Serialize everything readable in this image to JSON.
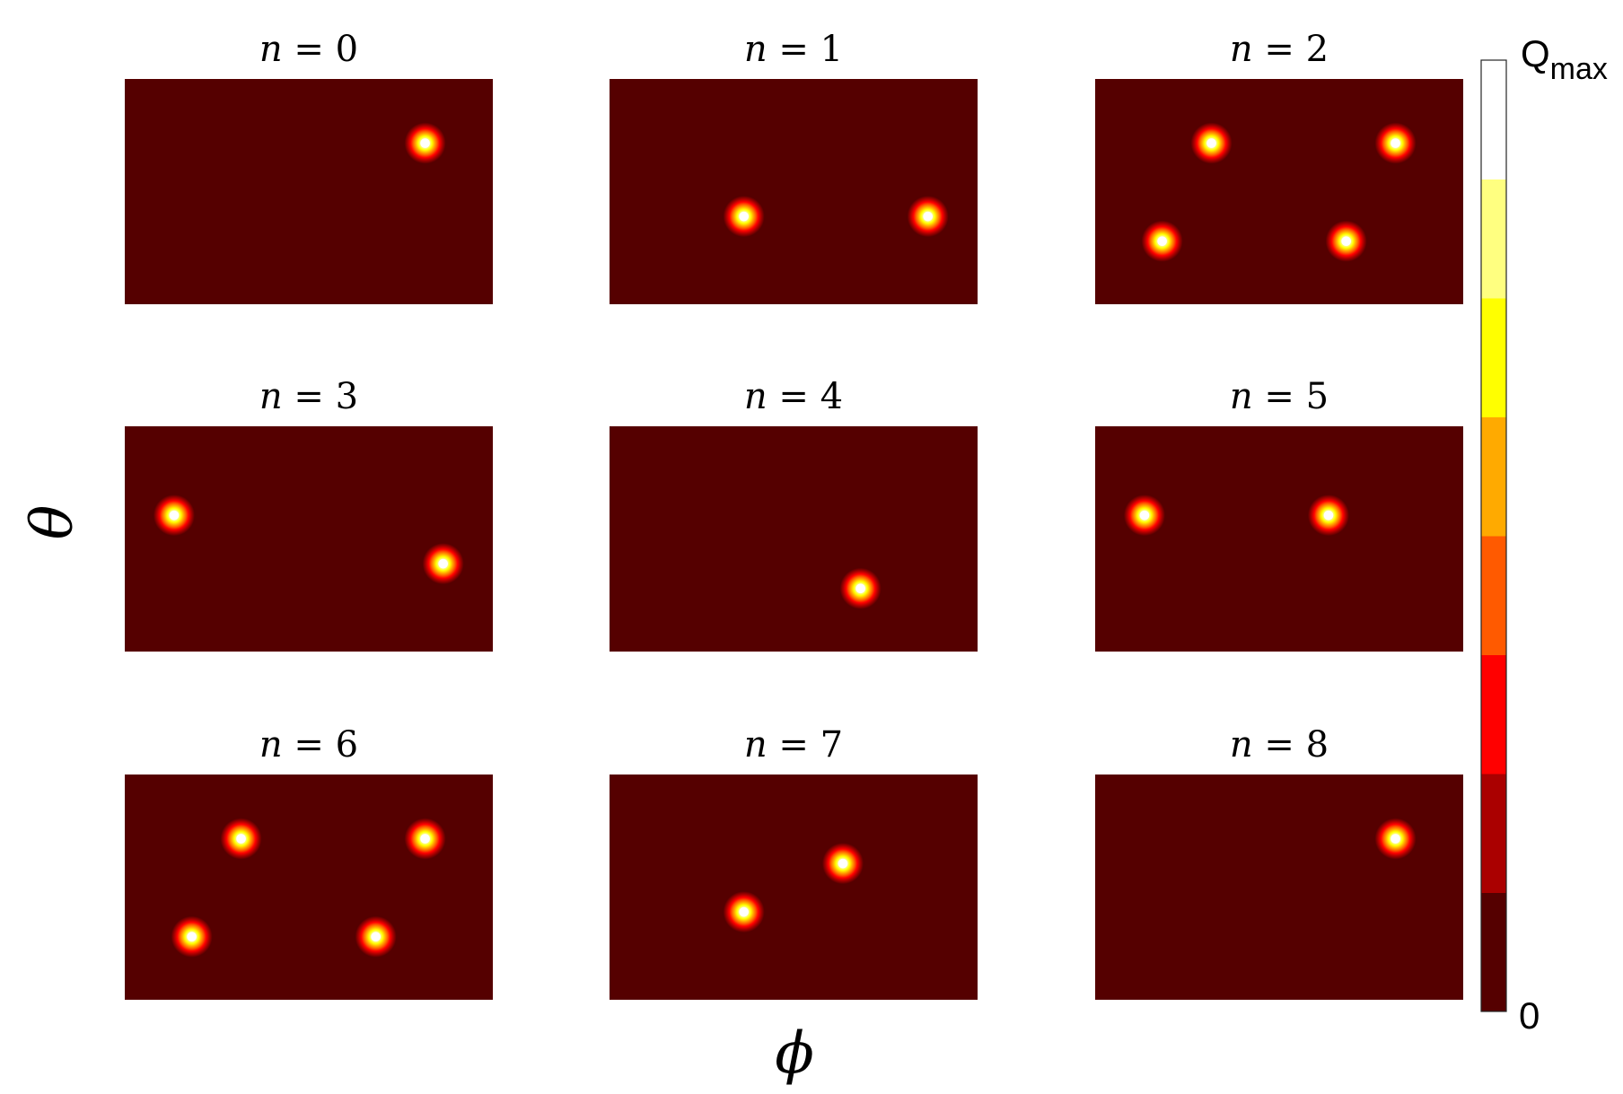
{
  "chart_data": {
    "type": "heatmap",
    "xlabel": "ϕ",
    "ylabel": "θ",
    "title_var": "n",
    "title_eq": "=",
    "background_color": "#550000",
    "colorbar": {
      "min_label": "0",
      "max_label": "Q",
      "max_label_sub": "max",
      "levels": [
        "#550000",
        "#aa0000",
        "#ff0000",
        "#ff5a00",
        "#ffaa00",
        "#ffff00",
        "#ffff80",
        "#ffffff"
      ]
    },
    "panels": [
      {
        "n": "0",
        "peaks": [
          {
            "x": 0.816,
            "y": 0.285
          }
        ]
      },
      {
        "n": "1",
        "peaks": [
          {
            "x": 0.365,
            "y": 0.61
          },
          {
            "x": 0.865,
            "y": 0.61
          }
        ]
      },
      {
        "n": "2",
        "peaks": [
          {
            "x": 0.316,
            "y": 0.285
          },
          {
            "x": 0.816,
            "y": 0.285
          },
          {
            "x": 0.182,
            "y": 0.72
          },
          {
            "x": 0.682,
            "y": 0.72
          }
        ]
      },
      {
        "n": "3",
        "peaks": [
          {
            "x": 0.134,
            "y": 0.395
          },
          {
            "x": 0.865,
            "y": 0.61
          }
        ]
      },
      {
        "n": "4",
        "peaks": [
          {
            "x": 0.682,
            "y": 0.72
          }
        ]
      },
      {
        "n": "5",
        "peaks": [
          {
            "x": 0.134,
            "y": 0.395
          },
          {
            "x": 0.634,
            "y": 0.395
          }
        ]
      },
      {
        "n": "6",
        "peaks": [
          {
            "x": 0.316,
            "y": 0.285
          },
          {
            "x": 0.816,
            "y": 0.285
          },
          {
            "x": 0.182,
            "y": 0.72
          },
          {
            "x": 0.682,
            "y": 0.72
          }
        ]
      },
      {
        "n": "7",
        "peaks": [
          {
            "x": 0.634,
            "y": 0.395
          },
          {
            "x": 0.365,
            "y": 0.61
          }
        ]
      },
      {
        "n": "8",
        "peaks": [
          {
            "x": 0.816,
            "y": 0.285
          }
        ]
      }
    ]
  }
}
